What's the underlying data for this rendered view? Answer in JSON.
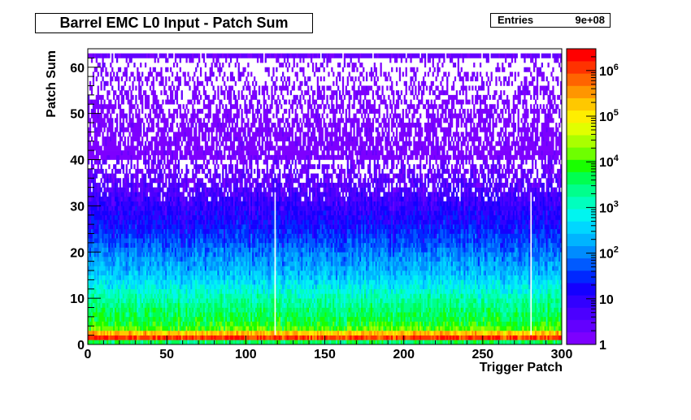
{
  "chart_data": {
    "type": "heatmap",
    "title": "Barrel EMC L0 Input - Patch Sum",
    "stats": {
      "label": "Entries",
      "value": "9e+08"
    },
    "xlabel": "Trigger Patch",
    "ylabel": "Patch Sum",
    "xlim": [
      0,
      300
    ],
    "ylim": [
      0,
      64
    ],
    "x_ticks": [
      0,
      50,
      100,
      150,
      200,
      250,
      300
    ],
    "y_ticks": [
      0,
      10,
      20,
      30,
      40,
      50,
      60
    ],
    "z_scale": "log",
    "z_range": [
      1,
      3000000
    ],
    "z_ticks": [
      "1",
      "10",
      "10^2",
      "10^3",
      "10^4",
      "10^5",
      "10^6"
    ],
    "palette": [
      "#7d00ff",
      "#6300ff",
      "#4b00ff",
      "#3200ff",
      "#1400ff",
      "#0028ff",
      "#005aff",
      "#008cff",
      "#00b4ff",
      "#00d7ff",
      "#00f5f0",
      "#00ffbe",
      "#00ff8c",
      "#00ff50",
      "#19ff00",
      "#6eff00",
      "#aaff00",
      "#e1ff00",
      "#ffee00",
      "#ffc800",
      "#ff9600",
      "#ff6400",
      "#ff3200",
      "#ff0000"
    ],
    "profile": [
      {
        "patch_sum": 0,
        "counts": 20
      },
      {
        "patch_sum": 1,
        "counts": 600000
      },
      {
        "patch_sum": 2,
        "counts": 2000000
      },
      {
        "patch_sum": 3,
        "counts": 15000
      },
      {
        "patch_sum": 5,
        "counts": 5000
      },
      {
        "patch_sum": 10,
        "counts": 1500
      },
      {
        "patch_sum": 15,
        "counts": 250
      },
      {
        "patch_sum": 20,
        "counts": 80
      },
      {
        "patch_sum": 25,
        "counts": 20
      },
      {
        "patch_sum": 30,
        "counts": 8
      },
      {
        "patch_sum": 35,
        "counts": 3
      },
      {
        "patch_sum": 40,
        "counts": 1.5
      },
      {
        "patch_sum": 50,
        "counts": 1
      },
      {
        "patch_sum": 62,
        "counts": 1
      },
      {
        "patch_sum": 63,
        "counts": 2
      }
    ]
  }
}
